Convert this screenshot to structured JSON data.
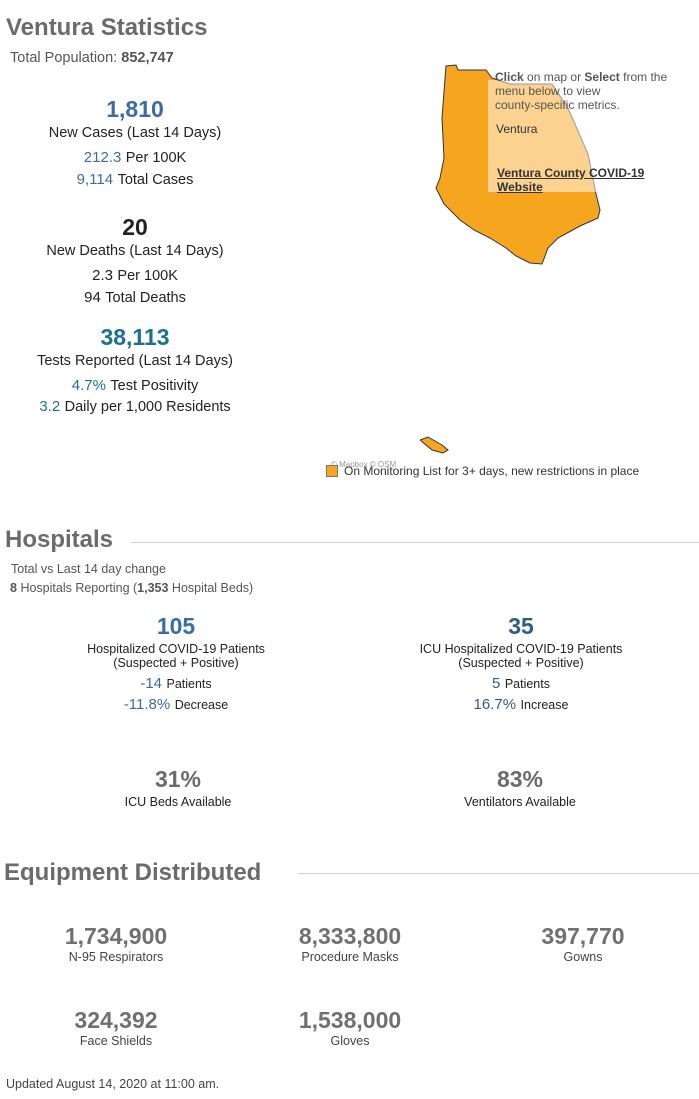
{
  "header": {
    "title": "Ventura Statistics",
    "population_label": "Total Population:",
    "population_value": "852,747"
  },
  "cases": {
    "value": "1,810",
    "label": "New Cases (Last 14 Days)",
    "per100k_value": "212.3",
    "per100k_label": "Per 100K",
    "total_value": "9,114",
    "total_label": "Total Cases"
  },
  "deaths": {
    "value": "20",
    "label": "New Deaths (Last 14 Days)",
    "per100k_value": "2.3",
    "per100k_label": "Per 100K",
    "total_value": "94",
    "total_label": "Total Deaths"
  },
  "tests": {
    "value": "38,113",
    "label": "Tests Reported (Last 14 Days)",
    "positivity_value": "4.7%",
    "positivity_label": "Test Positivity",
    "daily_value": "3.2",
    "daily_label": "Daily per 1,000 Residents"
  },
  "map": {
    "instruction_click": "Click",
    "instruction_mid": "on map or",
    "instruction_select": "Select",
    "instruction_rest1": "from the",
    "instruction_rest2": "menu below to view",
    "instruction_rest3": "county-specific metrics.",
    "county_name": "Ventura",
    "website_link_line1": "Ventura County COVID-19",
    "website_link_line2": "Website",
    "attribution": "© Mapbox © OSM",
    "legend_label": "On Monitoring List for 3+ days, new restrictions in place",
    "county_color": "#f6a51f"
  },
  "hospitals": {
    "title": "Hospitals",
    "subtitle": "Total vs Last 14 day change",
    "reporting_count": "8",
    "reporting_text": "Hospitals Reporting (",
    "beds_value": "1,353",
    "beds_text": "Hospital Beds)",
    "hosp": {
      "value": "105",
      "label1": "Hospitalized COVID-19 Patients",
      "label2": "(Suspected + Positive)",
      "change_value": "-14",
      "change_label": "Patients",
      "pct_value": "-11.8%",
      "pct_label": "Decrease"
    },
    "icu": {
      "value": "35",
      "label1": "ICU Hospitalized COVID-19 Patients",
      "label2": "(Suspected + Positive)",
      "change_value": "5",
      "change_label": "Patients",
      "pct_value": "16.7%",
      "pct_label": "Increase"
    },
    "icu_beds": {
      "value": "31%",
      "label": "ICU Beds Available"
    },
    "ventilators": {
      "value": "83%",
      "label": "Ventilators Available"
    }
  },
  "equipment": {
    "title": "Equipment Distributed",
    "items": [
      {
        "value": "1,734,900",
        "label": "N-95 Respirators"
      },
      {
        "value": "8,333,800",
        "label": "Procedure Masks"
      },
      {
        "value": "397,770",
        "label": "Gowns"
      },
      {
        "value": "324,392",
        "label": "Face Shields"
      },
      {
        "value": "1,538,000",
        "label": "Gloves"
      }
    ]
  },
  "footer": {
    "updated": "Updated August 14, 2020 at 11:00 am."
  }
}
